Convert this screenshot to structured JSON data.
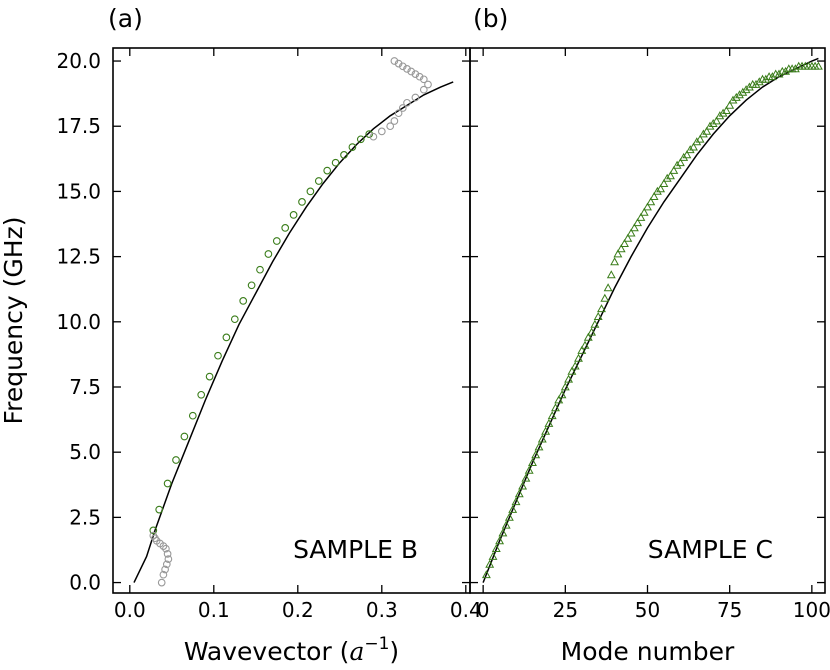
{
  "chart_data": [
    {
      "panel": "(a)",
      "type": "scatter",
      "xlabel_text": "Wavevector (",
      "xlabel_math_base": "a",
      "xlabel_math_sup": "−1",
      "xlabel_close": ")",
      "ylabel": "Frequency (GHz)",
      "annotation": "SAMPLE B",
      "xlim": [
        -0.02,
        0.405
      ],
      "ylim": [
        -0.4,
        20.5
      ],
      "xticks": [
        0.0,
        0.1,
        0.2,
        0.3,
        0.4
      ],
      "xtick_labels": [
        "0.0",
        "0.1",
        "0.2",
        "0.3",
        "0.4"
      ],
      "yticks": [
        0.0,
        2.5,
        5.0,
        7.5,
        10.0,
        12.5,
        15.0,
        17.5,
        20.0
      ],
      "ytick_labels": [
        "0.0",
        "2.5",
        "5.0",
        "7.5",
        "10.0",
        "12.5",
        "15.0",
        "17.5",
        "20.0"
      ],
      "series": [
        {
          "role": "fit",
          "style": "line",
          "color": "#000000",
          "x": [
            0.005,
            0.02,
            0.03,
            0.05,
            0.07,
            0.09,
            0.11,
            0.13,
            0.15,
            0.17,
            0.19,
            0.21,
            0.23,
            0.25,
            0.27,
            0.29,
            0.31,
            0.33,
            0.35,
            0.37,
            0.385
          ],
          "y": [
            0.0,
            1.0,
            2.0,
            3.8,
            5.4,
            7.0,
            8.5,
            9.9,
            11.1,
            12.3,
            13.4,
            14.4,
            15.3,
            16.1,
            16.8,
            17.4,
            17.9,
            18.3,
            18.7,
            19.0,
            19.2
          ]
        },
        {
          "role": "data-main",
          "style": "open-circle",
          "color": "#3a7d1a",
          "x": [
            0.028,
            0.035,
            0.045,
            0.055,
            0.065,
            0.075,
            0.085,
            0.095,
            0.105,
            0.115,
            0.125,
            0.135,
            0.145,
            0.155,
            0.165,
            0.175,
            0.185,
            0.195,
            0.205,
            0.215,
            0.225,
            0.235,
            0.245,
            0.255,
            0.265,
            0.275,
            0.285
          ],
          "y": [
            2.0,
            2.8,
            3.8,
            4.7,
            5.6,
            6.4,
            7.2,
            7.9,
            8.7,
            9.4,
            10.1,
            10.8,
            11.4,
            12.0,
            12.6,
            13.1,
            13.6,
            14.1,
            14.6,
            15.0,
            15.4,
            15.8,
            16.1,
            16.4,
            16.7,
            17.0,
            17.2
          ]
        },
        {
          "role": "data-outlier",
          "style": "open-circle",
          "color": "#999999",
          "x": [
            0.038,
            0.04,
            0.042,
            0.044,
            0.046,
            0.045,
            0.043,
            0.04,
            0.036,
            0.032,
            0.03,
            0.028,
            0.29,
            0.3,
            0.31,
            0.315,
            0.32,
            0.325,
            0.33,
            0.34,
            0.35,
            0.355,
            0.35,
            0.345,
            0.34,
            0.335,
            0.33,
            0.325,
            0.32,
            0.315
          ],
          "y": [
            0.0,
            0.3,
            0.5,
            0.7,
            0.9,
            1.1,
            1.3,
            1.4,
            1.5,
            1.6,
            1.7,
            1.8,
            17.1,
            17.3,
            17.5,
            17.7,
            18.0,
            18.2,
            18.4,
            18.6,
            18.9,
            19.1,
            19.3,
            19.4,
            19.5,
            19.6,
            19.7,
            19.8,
            19.9,
            20.0
          ]
        }
      ]
    },
    {
      "panel": "(b)",
      "type": "scatter",
      "xlabel": "Mode number",
      "annotation": "SAMPLE C",
      "xlim": [
        -4,
        104
      ],
      "ylim": [
        -0.4,
        20.5
      ],
      "xticks": [
        0,
        25,
        50,
        75,
        100
      ],
      "xtick_labels": [
        "0",
        "25",
        "50",
        "75",
        "100"
      ],
      "yticks": [
        0.0,
        2.5,
        5.0,
        7.5,
        10.0,
        12.5,
        15.0,
        17.5,
        20.0
      ],
      "series": [
        {
          "role": "fit",
          "style": "line",
          "color": "#000000",
          "x": [
            0,
            5,
            10,
            15,
            20,
            25,
            30,
            35,
            40,
            45,
            50,
            55,
            60,
            65,
            70,
            75,
            80,
            85,
            90,
            95,
            100,
            102
          ],
          "y": [
            0.0,
            1.6,
            3.1,
            4.6,
            6.0,
            7.4,
            8.7,
            10.0,
            11.3,
            12.5,
            13.6,
            14.6,
            15.5,
            16.4,
            17.2,
            17.9,
            18.5,
            19.0,
            19.4,
            19.7,
            20.0,
            20.1
          ]
        },
        {
          "role": "data",
          "style": "open-triangle",
          "color": "#3a7d1a",
          "x": [
            1,
            2,
            3,
            4,
            5,
            6,
            7,
            8,
            9,
            10,
            11,
            12,
            13,
            14,
            15,
            16,
            17,
            18,
            19,
            20,
            21,
            22,
            23,
            24,
            25,
            26,
            27,
            28,
            29,
            30,
            31,
            32,
            33,
            34,
            35,
            36,
            37,
            38,
            39,
            40,
            41,
            42,
            43,
            44,
            45,
            46,
            47,
            48,
            49,
            50,
            51,
            52,
            53,
            54,
            55,
            56,
            57,
            58,
            59,
            60,
            61,
            62,
            63,
            64,
            65,
            66,
            67,
            68,
            69,
            70,
            71,
            72,
            73,
            74,
            75,
            76,
            77,
            78,
            79,
            80,
            81,
            82,
            83,
            84,
            85,
            86,
            87,
            88,
            89,
            90,
            91,
            92,
            93,
            94,
            95,
            96,
            97,
            98,
            99,
            100,
            101,
            102
          ],
          "y": [
            0.3,
            0.7,
            1.0,
            1.3,
            1.6,
            1.9,
            2.2,
            2.5,
            2.8,
            3.1,
            3.4,
            3.7,
            4.0,
            4.3,
            4.6,
            4.9,
            5.2,
            5.5,
            5.8,
            6.1,
            6.4,
            6.7,
            7.0,
            7.2,
            7.5,
            7.8,
            8.1,
            8.3,
            8.6,
            8.9,
            9.1,
            9.4,
            9.6,
            9.9,
            10.2,
            10.5,
            10.9,
            11.3,
            11.8,
            12.3,
            12.6,
            12.8,
            13.0,
            13.2,
            13.4,
            13.6,
            13.8,
            14.0,
            14.2,
            14.4,
            14.6,
            14.8,
            15.0,
            15.1,
            15.3,
            15.5,
            15.6,
            15.8,
            16.0,
            16.1,
            16.3,
            16.4,
            16.6,
            16.7,
            16.9,
            17.0,
            17.2,
            17.3,
            17.5,
            17.6,
            17.7,
            17.9,
            18.0,
            18.1,
            18.3,
            18.5,
            18.6,
            18.7,
            18.8,
            18.9,
            19.0,
            19.1,
            19.1,
            19.2,
            19.3,
            19.3,
            19.4,
            19.4,
            19.5,
            19.5,
            19.6,
            19.6,
            19.7,
            19.7,
            19.7,
            19.8,
            19.8,
            19.8,
            19.8,
            19.8,
            19.8,
            19.8
          ]
        }
      ]
    }
  ]
}
